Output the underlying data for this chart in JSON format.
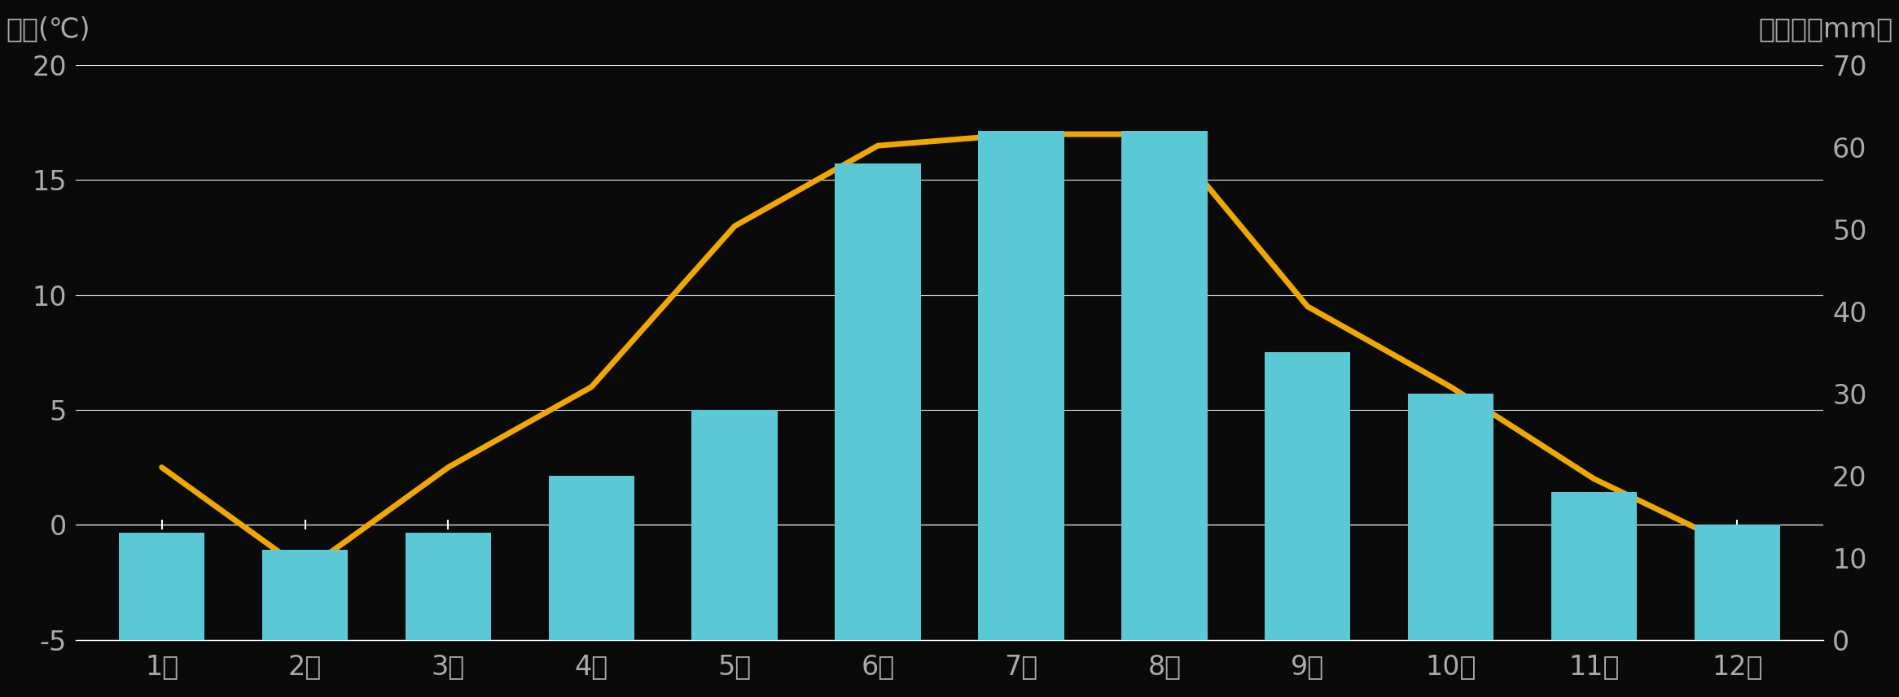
{
  "months_jp": [
    "1月",
    "2月",
    "3月",
    "4月",
    "5月",
    "6月",
    "7月",
    "8月",
    "9月",
    "10月",
    "11月",
    "12月"
  ],
  "temperature": [
    2.5,
    -2.0,
    2.5,
    6.0,
    13.0,
    16.5,
    17.0,
    17.0,
    9.5,
    6.0,
    2.0,
    -1.0
  ],
  "precipitation": [
    13,
    11,
    13,
    20,
    28,
    58,
    62,
    62,
    35,
    30,
    18,
    14
  ],
  "bar_color": "#5bc8d5",
  "line_color": "#f0a800",
  "background_color": "#0a0a0a",
  "text_color": "#aaaaaa",
  "grid_color": "#ffffff",
  "left_ylabel": "気温(℃)",
  "right_ylabel": "降水量（mm）",
  "left_ylim": [
    -5,
    20
  ],
  "right_ylim": [
    0,
    70
  ],
  "left_yticks": [
    -5,
    0,
    5,
    10,
    15,
    20
  ],
  "right_yticks": [
    0,
    10,
    20,
    30,
    40,
    50,
    60,
    70
  ],
  "figsize": [
    23.32,
    8.57
  ],
  "dpi": 100,
  "tick_fontsize": 24,
  "label_fontsize": 24
}
